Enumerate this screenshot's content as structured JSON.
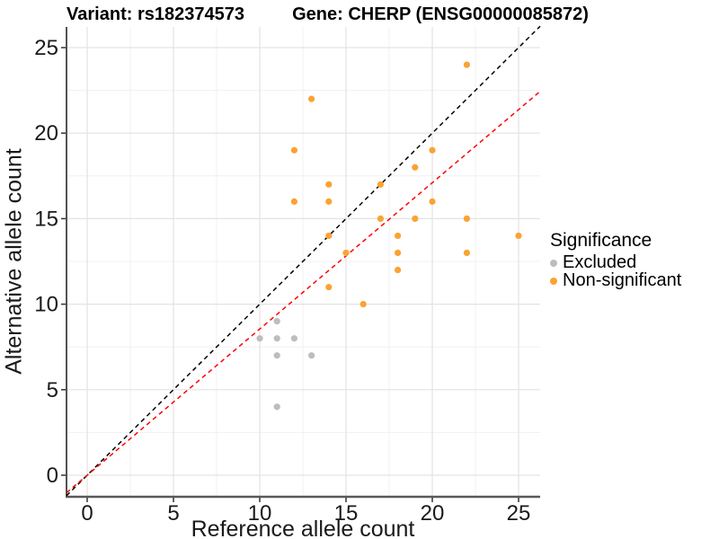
{
  "chart_data": {
    "type": "scatter",
    "title_left": "Variant: rs182374573",
    "title_right": "Gene: CHERP (ENSG00000085872)",
    "xlabel": "Reference allele count",
    "ylabel": "Alternative allele count",
    "xlim": [
      -1.2,
      26.25
    ],
    "ylim": [
      -1.26,
      26.2
    ],
    "x_ticks": [
      0,
      5,
      10,
      15,
      20,
      25
    ],
    "y_ticks": [
      0,
      5,
      10,
      15,
      20,
      25
    ],
    "x_minor": [
      2.5,
      7.5,
      12.5,
      17.5,
      22.5
    ],
    "y_minor": [
      2.5,
      7.5,
      12.5,
      17.5,
      22.5
    ],
    "grid": "major+minor",
    "legend": {
      "title": "Significance",
      "position": "right",
      "items": [
        {
          "label": "Excluded",
          "color": "#BDBDBD"
        },
        {
          "label": "Non-significant",
          "color": "#FAA332"
        }
      ]
    },
    "series": [
      {
        "name": "Excluded",
        "color": "#BDBDBD",
        "points": [
          [
            10,
            8
          ],
          [
            11,
            4
          ],
          [
            11,
            7
          ],
          [
            11,
            8
          ],
          [
            11,
            9
          ],
          [
            12,
            8
          ],
          [
            13,
            7
          ]
        ]
      },
      {
        "name": "Non-significant",
        "color": "#FAA332",
        "points": [
          [
            12,
            16
          ],
          [
            12,
            19
          ],
          [
            13,
            22
          ],
          [
            14,
            11
          ],
          [
            14,
            14
          ],
          [
            14,
            16
          ],
          [
            14,
            17
          ],
          [
            15,
            13
          ],
          [
            16,
            10
          ],
          [
            17,
            15
          ],
          [
            17,
            17
          ],
          [
            18,
            12
          ],
          [
            18,
            13
          ],
          [
            18,
            14
          ],
          [
            19,
            15
          ],
          [
            19,
            18
          ],
          [
            20,
            16
          ],
          [
            20,
            19
          ],
          [
            22,
            13
          ],
          [
            22,
            15
          ],
          [
            22,
            24
          ],
          [
            25,
            14
          ]
        ]
      }
    ],
    "ref_lines": [
      {
        "name": "identity-line",
        "slope": 1,
        "intercept": 0,
        "color": "#000000",
        "dash": "5,4"
      },
      {
        "name": "expected-ratio-line",
        "slope": 0.855,
        "intercept": 0,
        "color": "#FF0000",
        "dash": "5,4"
      }
    ],
    "colors": {
      "grid_major": "#E3E3E3",
      "grid_minor": "#F0F0F0",
      "axis_left": "#1A1A1A",
      "axis_bottom": "#595959",
      "tick": "#333333",
      "tick_label": "#1A1A1A"
    }
  }
}
